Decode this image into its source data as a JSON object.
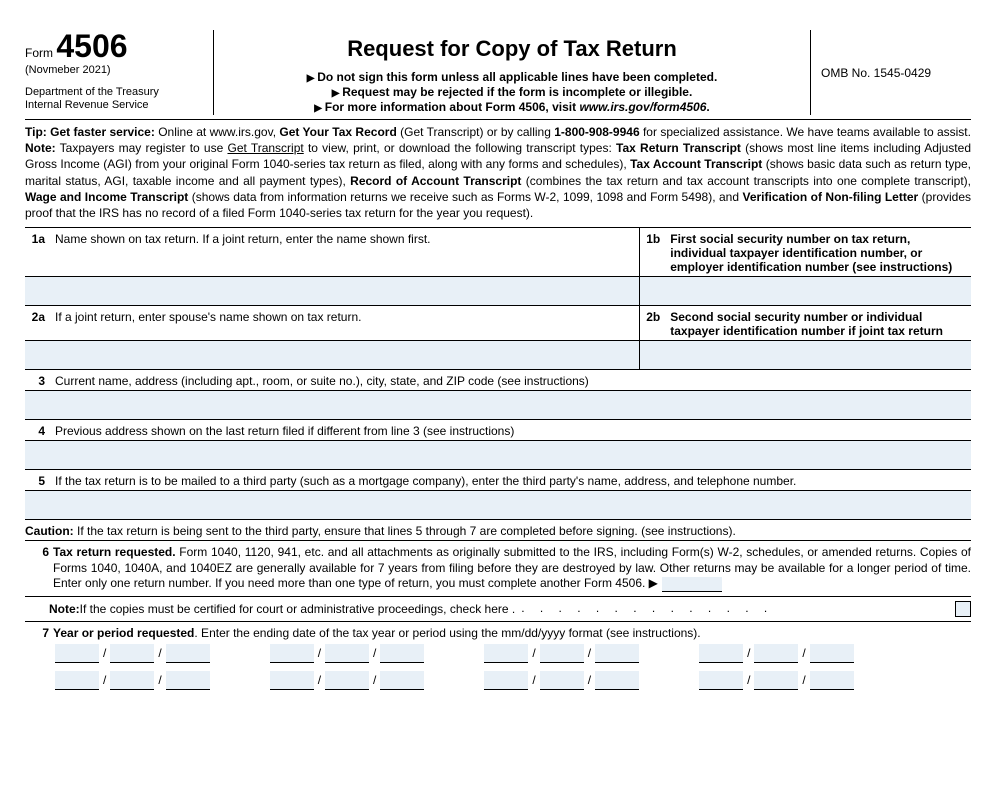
{
  "header": {
    "form_word": "Form",
    "form_number": "4506",
    "revision": "(Novmeber 2021)",
    "dept1": "Department of the Treasury",
    "dept2": "Internal Revenue Service",
    "title": "Request for Copy of Tax Return",
    "sub1": "Do not sign this form unless all applicable lines have been completed.",
    "sub2": "Request may be rejected if the form is incomplete or illegible.",
    "sub3_prefix": "For more information about Form 4506, visit ",
    "sub3_italic": "www.irs.gov/form4506",
    "sub3_suffix": ".",
    "omb": "OMB No. 1545-0429"
  },
  "tip": {
    "text_parts": {
      "tip_label": "Tip: Get faster service:",
      "t1": " Online at www.irs.gov, ",
      "b1": "Get Your Tax Record",
      "t2": " (Get Transcript) or by calling ",
      "b2": "1-800-908-9946",
      "t3": " for specialized assistance. We have teams available to assist. ",
      "note_label": "Note:",
      "t4": " Taxpayers may register to use ",
      "u1": "Get Transcript",
      "t5": " to view, print, or download the following transcript types: ",
      "b3": "Tax Return Transcript",
      "t6": " (shows most line items including Adjusted Gross Income (AGI) from your original Form 1040-series tax return as filed, along with any forms and schedules), ",
      "b4": "Tax Account Transcript",
      "t7": " (shows basic data such as return type, marital status, AGI, taxable income and all payment types), ",
      "b5": "Record of Account Transcript",
      "t8": " (combines the tax return and tax account transcripts into one complete transcript), ",
      "b6": "Wage and Income Transcript",
      "t9": " (shows data from information returns we receive such as Forms W-2, 1099, 1098 and Form 5498), and ",
      "b7": "Verification of Non-filing Letter",
      "t10": " (provides proof that the IRS has no record of a filed Form 1040-series tax return for the year you request)."
    }
  },
  "lines": {
    "l1a_num": "1a",
    "l1a": "Name shown on tax return. If a joint return, enter the name shown first.",
    "l1b_num": "1b",
    "l1b": "First social security number on tax return, individual taxpayer identification number, or employer identification number (see instructions)",
    "l2a_num": "2a",
    "l2a": "If a joint return, enter spouse's name shown on tax return.",
    "l2b_num": "2b",
    "l2b": "Second social security number or individual taxpayer identification number if joint tax return",
    "l3_num": "3",
    "l3": "Current name, address (including apt., room, or suite no.), city, state, and ZIP code (see instructions)",
    "l4_num": "4",
    "l4": "Previous address shown on the last return filed if different from line 3 (see instructions)",
    "l5_num": "5",
    "l5": "If the tax return is to be mailed to a third party (such as a mortgage company), enter the third party's name, address, and telephone number.",
    "caution_label": "Caution:",
    "caution": " If the tax return is being sent to the third party, ensure that lines 5 through 7 are completed before signing. (see instructions).",
    "l6_num": "6",
    "l6_label": "Tax return requested.",
    "l6_body": " Form 1040, 1120, 941, etc. and all attachments as originally submitted to the IRS, including Form(s) W-2, schedules, or amended returns. Copies of Forms 1040, 1040A, and 1040EZ are generally available for 7 years from filing before they are destroyed by law. Other returns may be available for a longer period of time. Enter only one return number. If you need more than one type of return, you must complete another Form 4506. ▶",
    "note_label": "Note:",
    "note_body": " If the copies must be certified for court or administrative proceedings, check here  .",
    "dots": ".     .     .     .     .     .     .     .     .     .     .     .     .     .",
    "l7_num": "7",
    "l7_label": "Year or period requested",
    "l7_body": ". Enter the ending date of the tax year or period using the mm/dd/yyyy format (see instructions)."
  },
  "style": {
    "fill_color": "#e8f0f7"
  }
}
